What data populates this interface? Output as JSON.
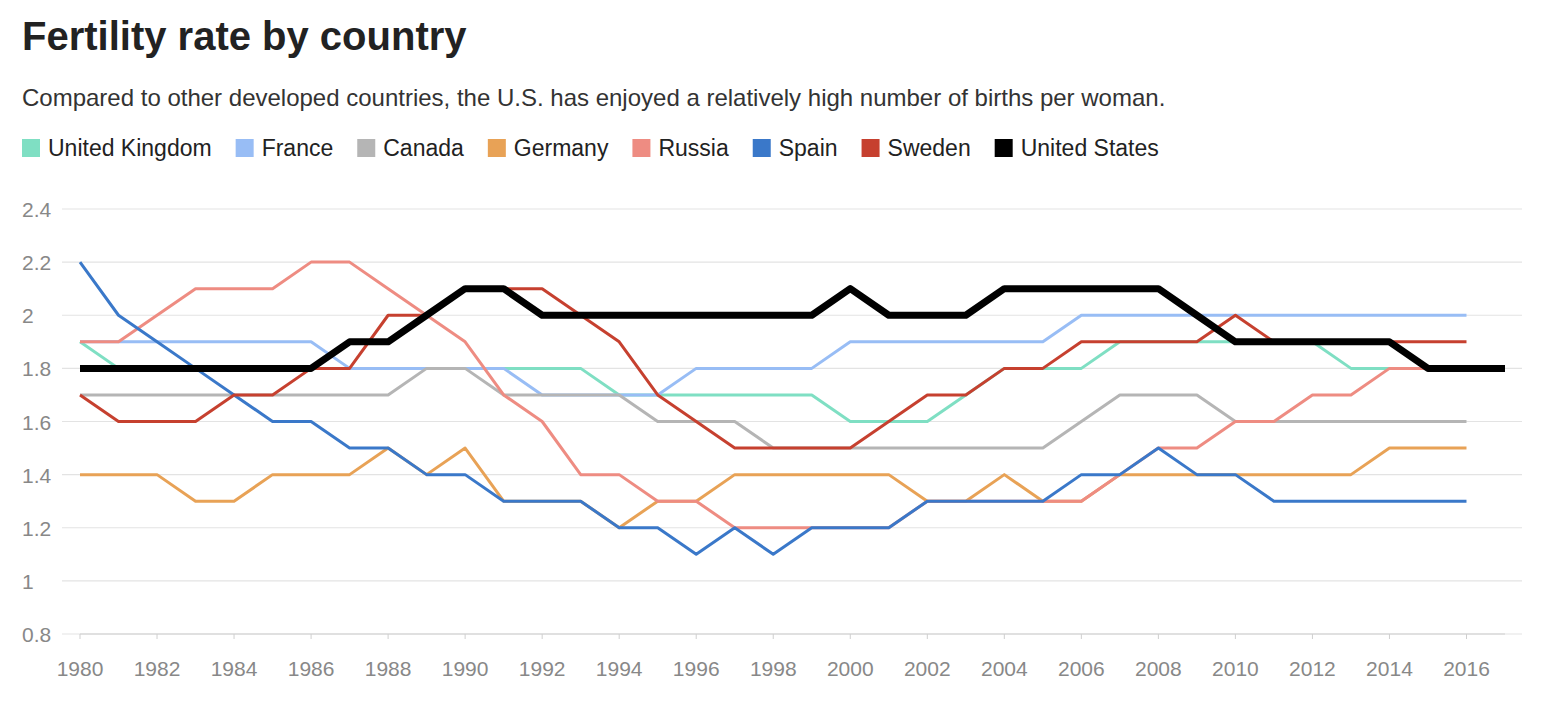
{
  "chart_data": {
    "type": "line",
    "title": "Fertility rate by country",
    "subtitle": "Compared to other developed countries, the U.S. has enjoyed a relatively high number of births per woman.",
    "x": [
      1980,
      1981,
      1982,
      1983,
      1984,
      1985,
      1986,
      1987,
      1988,
      1989,
      1990,
      1991,
      1992,
      1993,
      1994,
      1995,
      1996,
      1997,
      1998,
      1999,
      2000,
      2001,
      2002,
      2003,
      2004,
      2005,
      2006,
      2007,
      2008,
      2009,
      2010,
      2011,
      2012,
      2013,
      2014,
      2015,
      2016,
      2017
    ],
    "xlim": [
      1980,
      2017
    ],
    "xticks": [
      1980,
      1982,
      1984,
      1986,
      1988,
      1990,
      1992,
      1994,
      1996,
      1998,
      2000,
      2002,
      2004,
      2006,
      2008,
      2010,
      2012,
      2014,
      2016
    ],
    "ylim": [
      0.8,
      2.4
    ],
    "yticks": [
      0.8,
      1,
      1.2,
      1.4,
      1.6,
      1.8,
      2,
      2.2,
      2.4
    ],
    "grid": true,
    "legend": "top",
    "series": [
      {
        "name": "United Kingdom",
        "color": "#7fdfc3",
        "values": [
          1.9,
          1.8,
          1.8,
          1.8,
          1.8,
          1.8,
          1.8,
          1.8,
          1.8,
          1.8,
          1.8,
          1.8,
          1.8,
          1.8,
          1.7,
          1.7,
          1.7,
          1.7,
          1.7,
          1.7,
          1.6,
          1.6,
          1.6,
          1.7,
          1.8,
          1.8,
          1.8,
          1.9,
          1.9,
          1.9,
          1.9,
          1.9,
          1.9,
          1.8,
          1.8,
          1.8,
          1.8,
          null
        ]
      },
      {
        "name": "France",
        "color": "#98bdf5",
        "values": [
          1.9,
          1.9,
          1.9,
          1.9,
          1.9,
          1.9,
          1.9,
          1.8,
          1.8,
          1.8,
          1.8,
          1.8,
          1.7,
          1.7,
          1.7,
          1.7,
          1.8,
          1.8,
          1.8,
          1.8,
          1.9,
          1.9,
          1.9,
          1.9,
          1.9,
          1.9,
          2,
          2,
          2,
          2,
          2,
          2,
          2,
          2,
          2,
          2,
          2,
          null
        ]
      },
      {
        "name": "Canada",
        "color": "#b5b5b5",
        "values": [
          1.7,
          1.7,
          1.7,
          1.7,
          1.7,
          1.7,
          1.7,
          1.7,
          1.7,
          1.8,
          1.8,
          1.7,
          1.7,
          1.7,
          1.7,
          1.6,
          1.6,
          1.6,
          1.5,
          1.5,
          1.5,
          1.5,
          1.5,
          1.5,
          1.5,
          1.5,
          1.6,
          1.7,
          1.7,
          1.7,
          1.6,
          1.6,
          1.6,
          1.6,
          1.6,
          1.6,
          1.6,
          null
        ]
      },
      {
        "name": "Germany",
        "color": "#e8a256",
        "values": [
          1.4,
          1.4,
          1.4,
          1.3,
          1.3,
          1.4,
          1.4,
          1.4,
          1.5,
          1.4,
          1.5,
          1.3,
          1.3,
          1.3,
          1.2,
          1.3,
          1.3,
          1.4,
          1.4,
          1.4,
          1.4,
          1.4,
          1.3,
          1.3,
          1.4,
          1.3,
          1.3,
          1.4,
          1.4,
          1.4,
          1.4,
          1.4,
          1.4,
          1.4,
          1.5,
          1.5,
          1.5,
          null
        ]
      },
      {
        "name": "Russia",
        "color": "#ee8c82",
        "values": [
          1.9,
          1.9,
          2,
          2.1,
          2.1,
          2.1,
          2.2,
          2.2,
          2.1,
          2,
          1.9,
          1.7,
          1.6,
          1.4,
          1.4,
          1.3,
          1.3,
          1.2,
          1.2,
          1.2,
          1.2,
          1.2,
          1.3,
          1.3,
          1.3,
          1.3,
          1.3,
          1.4,
          1.5,
          1.5,
          1.6,
          1.6,
          1.7,
          1.7,
          1.8,
          1.8,
          1.8,
          null
        ]
      },
      {
        "name": "Spain",
        "color": "#3a78c9",
        "values": [
          2.2,
          2,
          1.9,
          1.8,
          1.7,
          1.6,
          1.6,
          1.5,
          1.5,
          1.4,
          1.4,
          1.3,
          1.3,
          1.3,
          1.2,
          1.2,
          1.1,
          1.2,
          1.1,
          1.2,
          1.2,
          1.2,
          1.3,
          1.3,
          1.3,
          1.3,
          1.4,
          1.4,
          1.5,
          1.4,
          1.4,
          1.3,
          1.3,
          1.3,
          1.3,
          1.3,
          1.3,
          null
        ]
      },
      {
        "name": "Sweden",
        "color": "#c6402f",
        "values": [
          1.7,
          1.6,
          1.6,
          1.6,
          1.7,
          1.7,
          1.8,
          1.8,
          2,
          2,
          2.1,
          2.1,
          2.1,
          2,
          1.9,
          1.7,
          1.6,
          1.5,
          1.5,
          1.5,
          1.5,
          1.6,
          1.7,
          1.7,
          1.8,
          1.8,
          1.9,
          1.9,
          1.9,
          1.9,
          2,
          1.9,
          1.9,
          1.9,
          1.9,
          1.9,
          1.9,
          null
        ]
      },
      {
        "name": "United States",
        "color": "#000000",
        "values": [
          1.8,
          1.8,
          1.8,
          1.8,
          1.8,
          1.8,
          1.8,
          1.9,
          1.9,
          2,
          2.1,
          2.1,
          2,
          2,
          2,
          2,
          2,
          2,
          2,
          2,
          2.1,
          2,
          2,
          2,
          2.1,
          2.1,
          2.1,
          2.1,
          2.1,
          2,
          1.9,
          1.9,
          1.9,
          1.9,
          1.9,
          1.8,
          1.8,
          1.8
        ]
      }
    ]
  }
}
